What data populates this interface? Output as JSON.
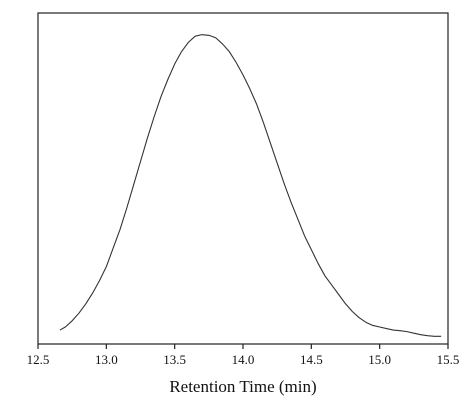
{
  "chart_data": {
    "type": "line",
    "title": "",
    "xlabel": "Retention Time (min)",
    "ylabel": "",
    "xlim": [
      12.5,
      15.5
    ],
    "ylim": [
      0,
      1.07
    ],
    "x_ticks": [
      "12.5",
      "13.0",
      "13.5",
      "14.0",
      "14.5",
      "15.0",
      "15.5"
    ],
    "y_ticks_shown": false,
    "grid": false,
    "legend": "none",
    "line_color": "#333333",
    "series": [
      {
        "x": [
          12.66,
          12.7,
          12.75,
          12.8,
          12.85,
          12.9,
          12.95,
          13.0,
          13.05,
          13.1,
          13.15,
          13.2,
          13.25,
          13.3,
          13.35,
          13.4,
          13.45,
          13.5,
          13.55,
          13.6,
          13.65,
          13.7,
          13.75,
          13.8,
          13.85,
          13.9,
          13.95,
          14.0,
          14.05,
          14.1,
          14.15,
          14.2,
          14.25,
          14.3,
          14.35,
          14.4,
          14.45,
          14.5,
          14.55,
          14.6,
          14.65,
          14.7,
          14.75,
          14.8,
          14.85,
          14.9,
          14.95,
          15.0,
          15.05,
          15.1,
          15.15,
          15.2,
          15.25,
          15.3,
          15.35,
          15.4,
          15.45
        ],
        "values": [
          0.045,
          0.055,
          0.075,
          0.1,
          0.13,
          0.165,
          0.205,
          0.25,
          0.31,
          0.37,
          0.44,
          0.515,
          0.59,
          0.665,
          0.735,
          0.8,
          0.855,
          0.905,
          0.945,
          0.975,
          0.995,
          1.0,
          0.998,
          0.99,
          0.97,
          0.945,
          0.91,
          0.87,
          0.825,
          0.775,
          0.715,
          0.65,
          0.585,
          0.52,
          0.46,
          0.405,
          0.35,
          0.305,
          0.26,
          0.22,
          0.19,
          0.16,
          0.13,
          0.105,
          0.085,
          0.07,
          0.06,
          0.055,
          0.05,
          0.045,
          0.043,
          0.04,
          0.035,
          0.03,
          0.027,
          0.025,
          0.025
        ]
      }
    ]
  }
}
